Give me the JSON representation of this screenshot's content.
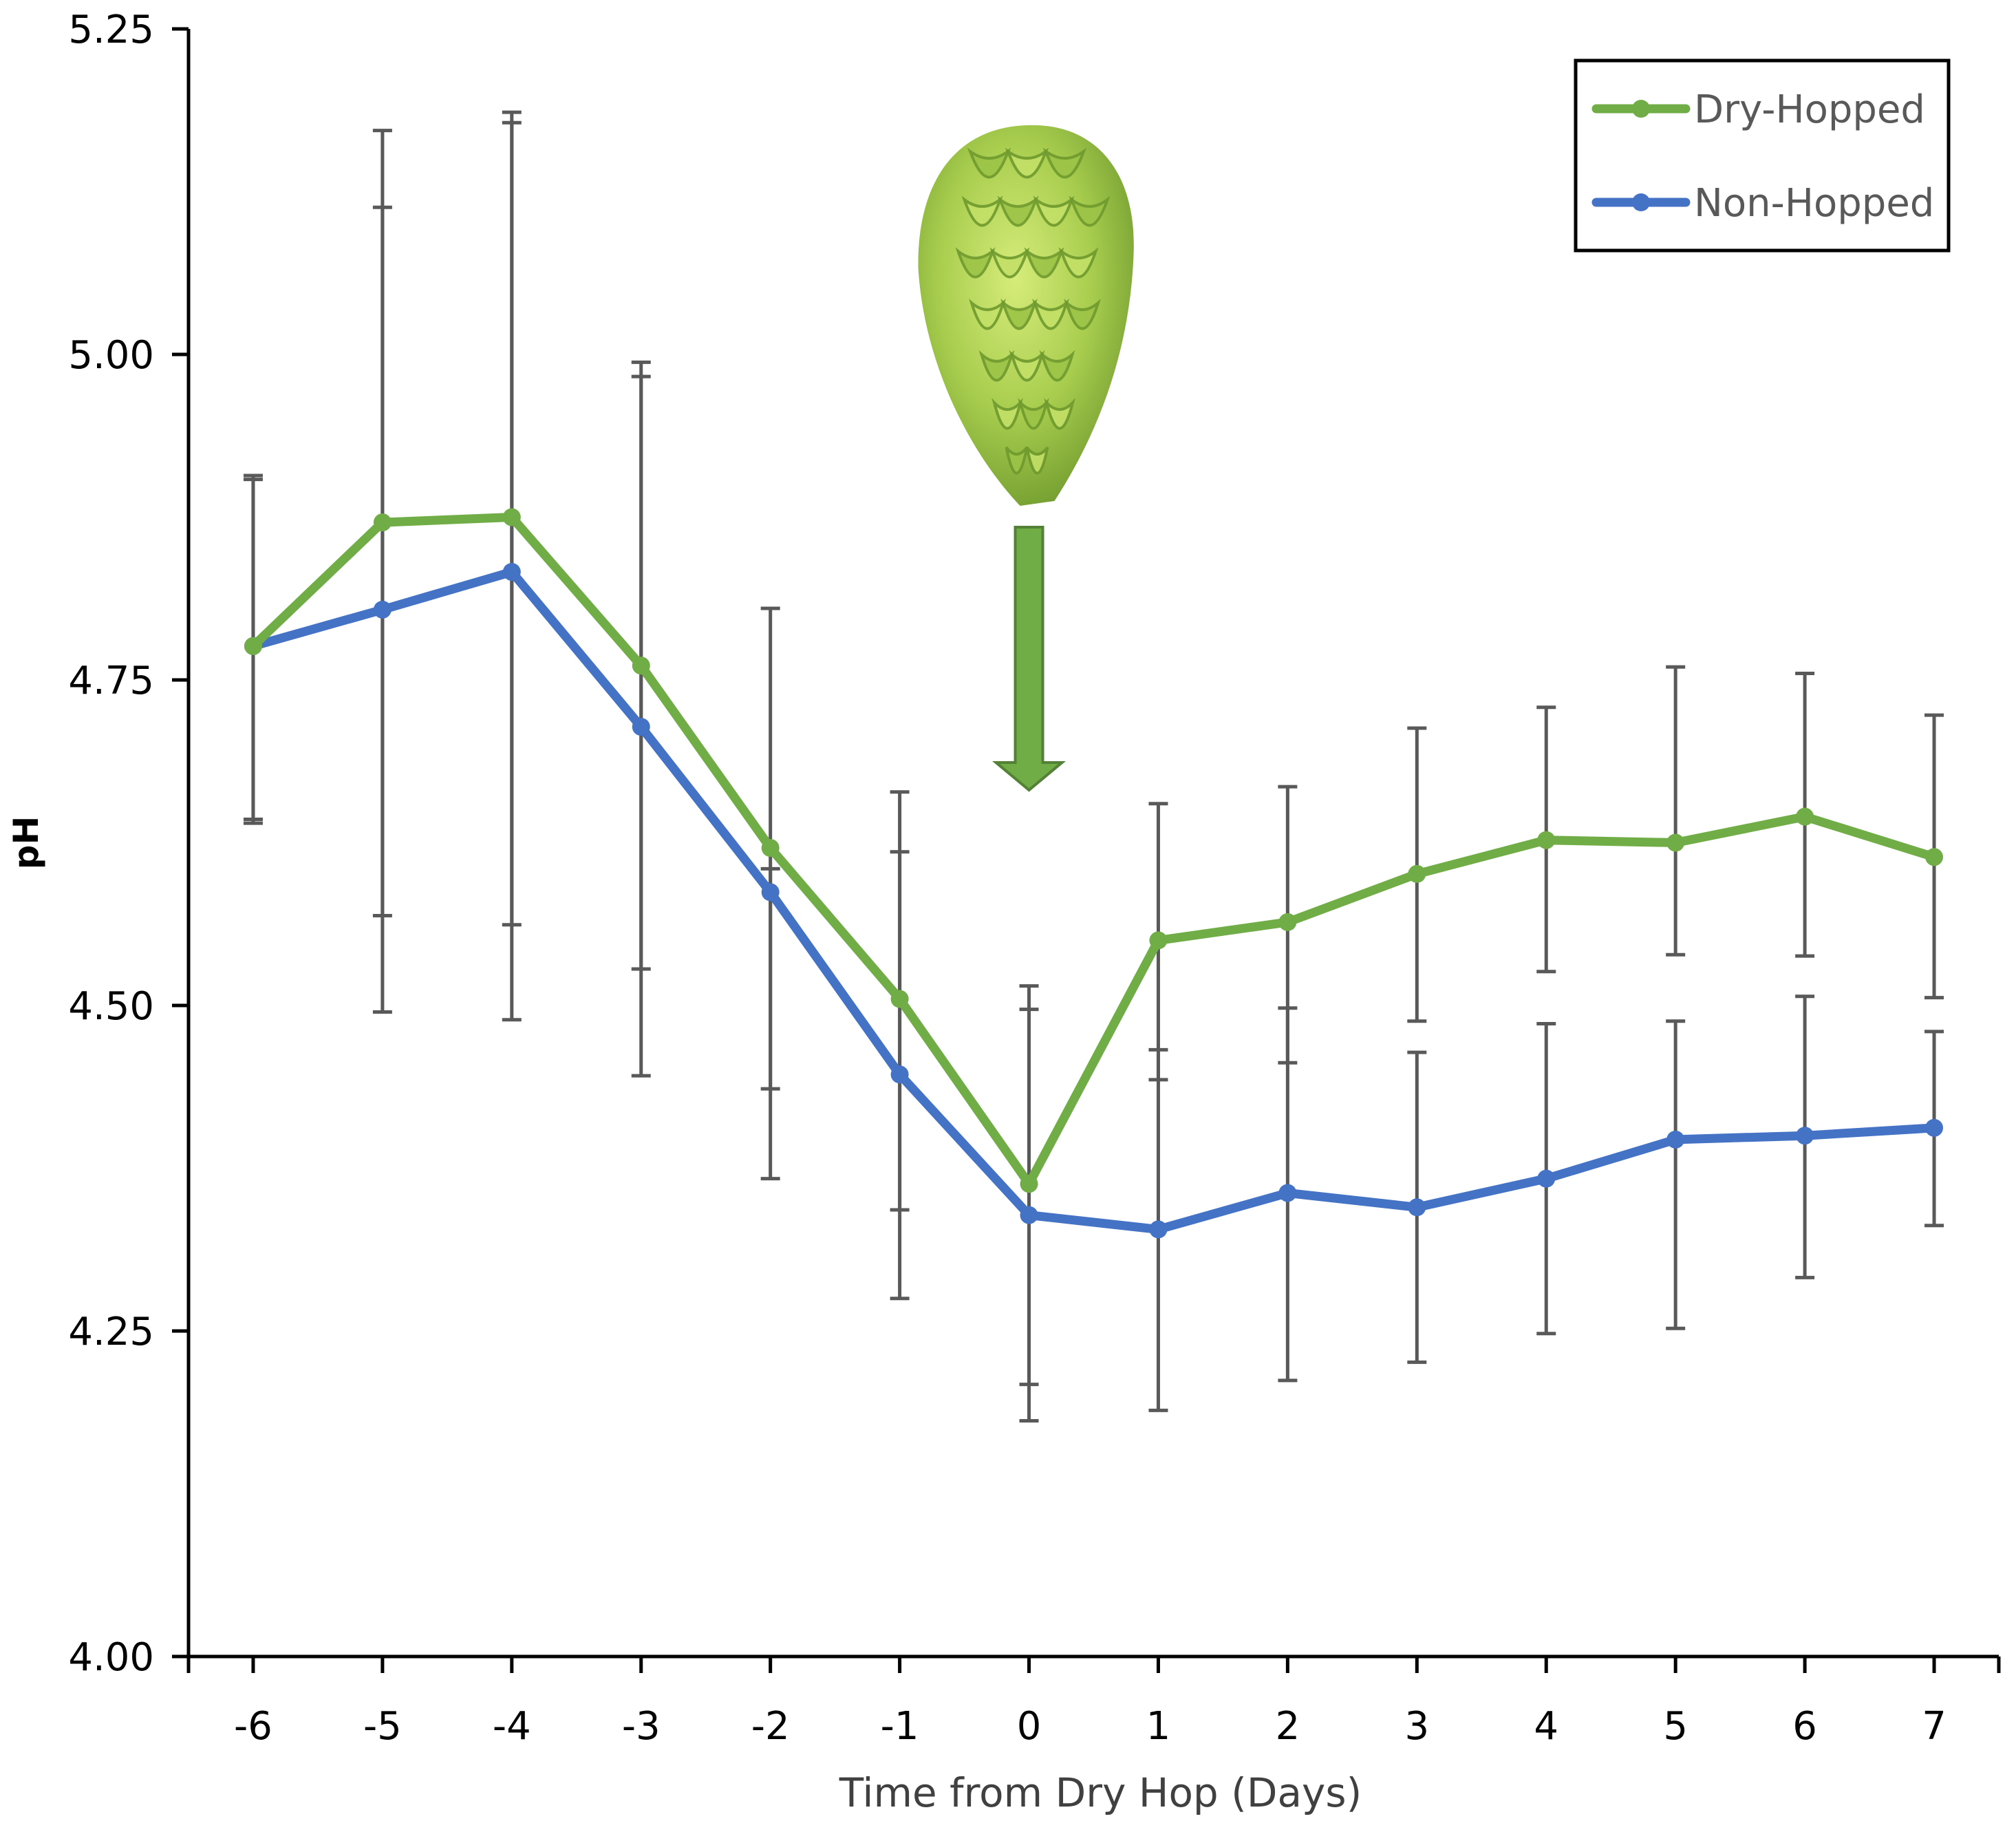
{
  "chart_data": {
    "type": "line",
    "title": "",
    "xlabel": "Time from Dry Hop (Days)",
    "ylabel": "pH",
    "x": [
      -6,
      -5,
      -4,
      -3,
      -2,
      -1,
      0,
      1,
      2,
      3,
      4,
      5,
      6,
      7
    ],
    "x_tick_labels": [
      "-6",
      "-5",
      "-4",
      "-3",
      "-2",
      "-1",
      "0",
      "1",
      "2",
      "3",
      "4",
      "5",
      "6",
      "7"
    ],
    "xlim": [
      -6.5,
      7.5
    ],
    "ylim": [
      4.0,
      5.25
    ],
    "y_ticks": [
      4.0,
      4.25,
      4.5,
      4.75,
      5.0,
      5.25
    ],
    "y_tick_labels": [
      "4.00",
      "4.25",
      "4.50",
      "4.75",
      "5.00",
      "5.25"
    ],
    "grid": false,
    "legend_position": "top-right",
    "series": [
      {
        "name": "Dry-Hopped",
        "color": "#70ad47",
        "values": [
          4.776,
          4.871,
          4.875,
          4.761,
          4.621,
          4.505,
          4.363,
          4.55,
          4.564,
          4.601,
          4.627,
          4.625,
          4.645,
          4.614
        ],
        "error_low": [
          4.64,
          4.495,
          4.562,
          4.528,
          4.436,
          4.343,
          4.209,
          4.443,
          4.456,
          4.488,
          4.526,
          4.539,
          4.538,
          4.506
        ],
        "error_high": [
          4.907,
          5.172,
          5.186,
          4.994,
          4.805,
          4.664,
          4.515,
          4.655,
          4.668,
          4.713,
          4.729,
          4.76,
          4.755,
          4.723
        ]
      },
      {
        "name": "Non-Hopped",
        "color": "#4472c4",
        "values": [
          4.776,
          4.804,
          4.833,
          4.714,
          4.587,
          4.447,
          4.339,
          4.328,
          4.356,
          4.345,
          4.367,
          4.397,
          4.4,
          4.406
        ],
        "error_low": [
          4.643,
          4.569,
          4.489,
          4.446,
          4.367,
          4.275,
          4.181,
          4.189,
          4.212,
          4.226,
          4.248,
          4.252,
          4.291,
          4.331
        ],
        "error_high": [
          4.904,
          5.113,
          5.178,
          4.983,
          4.605,
          4.618,
          4.497,
          4.466,
          4.498,
          4.464,
          4.486,
          4.488,
          4.507,
          4.48
        ]
      }
    ],
    "annotations": [
      {
        "type": "arrow",
        "color": "#70ad47",
        "x": 0,
        "points_to": "dry hop addition"
      },
      {
        "type": "image",
        "icon": "hop-cone-icon",
        "x": 0
      }
    ]
  }
}
